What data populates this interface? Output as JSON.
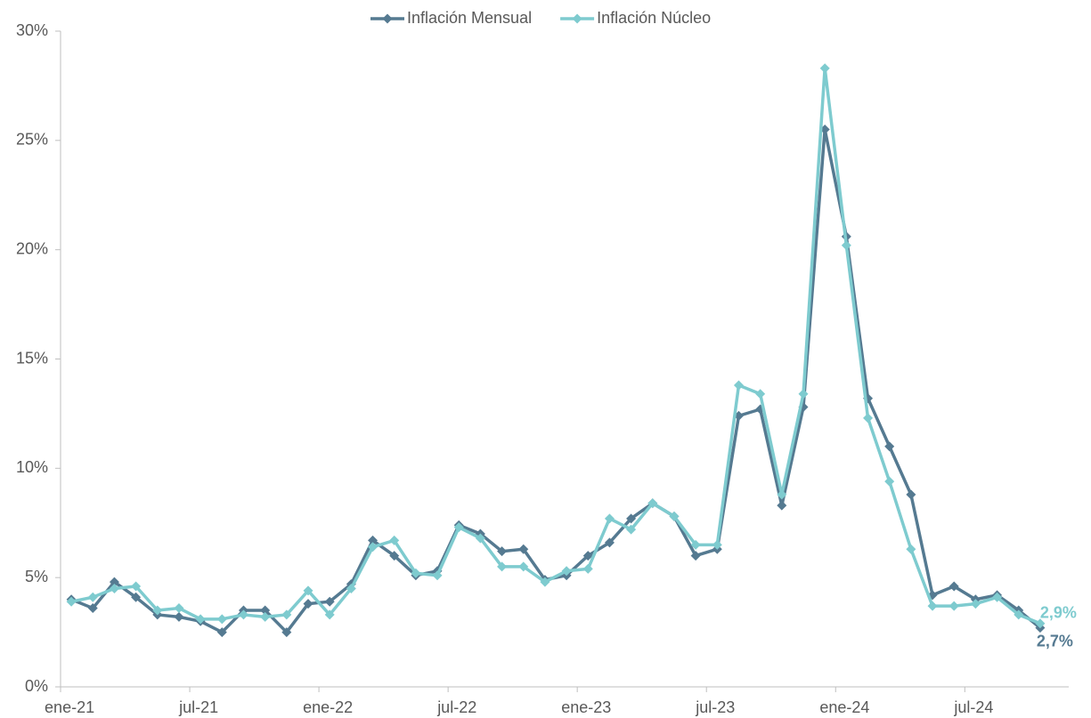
{
  "chart_data": {
    "type": "line",
    "categories": [
      "ene-21",
      null,
      null,
      null,
      null,
      null,
      "jul-21",
      null,
      null,
      null,
      null,
      null,
      "ene-22",
      null,
      null,
      null,
      null,
      null,
      "jul-22",
      null,
      null,
      null,
      null,
      null,
      "ene-23",
      null,
      null,
      null,
      null,
      null,
      "jul-23",
      null,
      null,
      null,
      null,
      null,
      "ene-24",
      null,
      null,
      null,
      null,
      null,
      "jul-24",
      null,
      null,
      null
    ],
    "series": [
      {
        "name": "Inflación Mensual",
        "color": "#557a91",
        "values": [
          4.0,
          3.6,
          4.8,
          4.1,
          3.3,
          3.2,
          3.0,
          2.5,
          3.5,
          3.5,
          2.5,
          3.8,
          3.9,
          4.7,
          6.7,
          6.0,
          5.1,
          5.3,
          7.4,
          7.0,
          6.2,
          6.3,
          4.9,
          5.1,
          6.0,
          6.6,
          7.7,
          8.4,
          7.8,
          6.0,
          6.3,
          12.4,
          12.7,
          8.3,
          12.8,
          25.5,
          20.6,
          13.2,
          11.0,
          8.8,
          4.2,
          4.6,
          4.0,
          4.2,
          3.5,
          2.7
        ],
        "value_labels": [
          null,
          null,
          null,
          null,
          null,
          null,
          null,
          null,
          null,
          null,
          null,
          null,
          null,
          null,
          null,
          null,
          null,
          null,
          null,
          null,
          null,
          null,
          null,
          null,
          null,
          null,
          null,
          null,
          null,
          null,
          null,
          null,
          null,
          null,
          null,
          null,
          null,
          null,
          null,
          null,
          null,
          null,
          null,
          null,
          null,
          "2,7%"
        ]
      },
      {
        "name": "Inflación Núcleo",
        "color": "#7ecbcf",
        "values": [
          3.9,
          4.1,
          4.5,
          4.6,
          3.5,
          3.6,
          3.1,
          3.1,
          3.3,
          3.2,
          3.3,
          4.4,
          3.3,
          4.5,
          6.4,
          6.7,
          5.2,
          5.1,
          7.3,
          6.8,
          5.5,
          5.5,
          4.8,
          5.3,
          5.4,
          7.7,
          7.2,
          8.4,
          7.8,
          6.5,
          6.5,
          13.8,
          13.4,
          8.8,
          13.4,
          28.3,
          20.2,
          12.3,
          9.4,
          6.3,
          3.7,
          3.7,
          3.8,
          4.1,
          3.3,
          2.9
        ],
        "value_labels": [
          null,
          null,
          null,
          null,
          null,
          null,
          null,
          null,
          null,
          null,
          null,
          null,
          null,
          null,
          null,
          null,
          null,
          null,
          null,
          null,
          null,
          null,
          null,
          null,
          null,
          null,
          null,
          null,
          null,
          null,
          null,
          null,
          null,
          null,
          null,
          null,
          null,
          null,
          null,
          null,
          null,
          null,
          null,
          null,
          null,
          "2,9%"
        ]
      }
    ],
    "ylim": [
      0,
      30
    ],
    "yticks": [
      {
        "value": 0,
        "label": "0%"
      },
      {
        "value": 5,
        "label": "5%"
      },
      {
        "value": 10,
        "label": "10%"
      },
      {
        "value": 15,
        "label": "15%"
      },
      {
        "value": 20,
        "label": "20%"
      },
      {
        "value": 25,
        "label": "25%"
      },
      {
        "value": 30,
        "label": "30%"
      }
    ],
    "legend": "top"
  }
}
